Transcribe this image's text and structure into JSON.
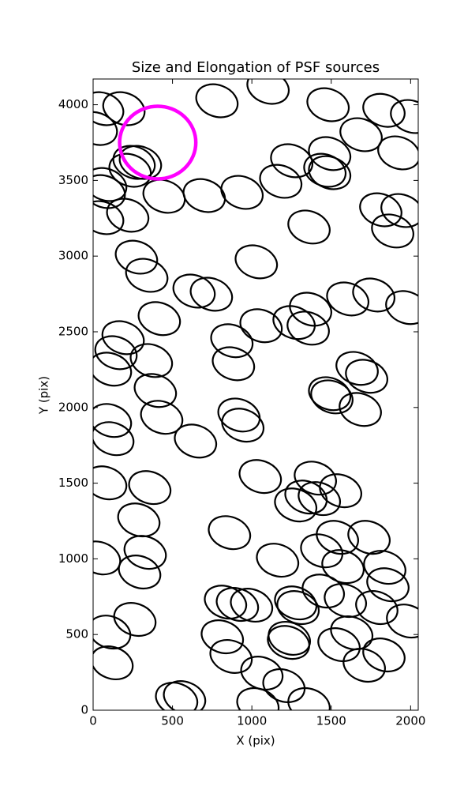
{
  "chart_data": {
    "type": "scatter",
    "title": "Size and Elongation of PSF sources",
    "x_label": "X (pix)",
    "y_label": "Y (pix)",
    "xlim": [
      0,
      2048
    ],
    "ylim": [
      0,
      4170
    ],
    "xticks": [
      0,
      500,
      1000,
      1500,
      2000
    ],
    "yticks": [
      0,
      500,
      1000,
      1500,
      2000,
      2500,
      3000,
      3500,
      4000
    ],
    "color": "#000000",
    "ellipse_axes": [
      134,
      104
    ],
    "ellipse_angle": 20,
    "x": [
      60,
      194,
      780,
      1102,
      1480,
      1832,
      2006,
      20,
      1688,
      258,
      298,
      1251,
      1490,
      1926,
      233,
      1460,
      1490,
      79,
      70,
      447,
      700,
      938,
      1182,
      60,
      218,
      1812,
      1946,
      1887,
      1360,
      273,
      338,
      1028,
      636,
      745,
      1370,
      417,
      189,
      144,
      1058,
      1266,
      1355,
      1604,
      1768,
      1976,
      874,
      367,
      109,
      884,
      392,
      1663,
      1723,
      1490,
      1504,
      1683,
      432,
      919,
      943,
      109,
      124,
      645,
      79,
      357,
      1053,
      1400,
      1559,
      1276,
      1341,
      1425,
      288,
      859,
      328,
      1539,
      1738,
      1440,
      1162,
      293,
      40,
      1837,
      1574,
      1857,
      834,
      909,
      998,
      1276,
      1450,
      1589,
      1291,
      1787,
      1981,
      263,
      104,
      814,
      1236,
      1231,
      1549,
      1629,
      869,
      1832,
      119,
      1708,
      1063,
      1202,
      526,
      576,
      1038,
      1360
    ],
    "y": [
      3974,
      3974,
      4026,
      4115,
      4000,
      3963,
      3922,
      3843,
      3802,
      3619,
      3619,
      3630,
      3677,
      3682,
      3567,
      3567,
      3551,
      3473,
      3426,
      3395,
      3400,
      3421,
      3494,
      3254,
      3270,
      3306,
      3301,
      3166,
      3192,
      2993,
      2873,
      2962,
      2769,
      2748,
      2649,
      2587,
      2461,
      2362,
      2540,
      2561,
      2524,
      2717,
      2743,
      2660,
      2441,
      2310,
      2253,
      2289,
      2112,
      2258,
      2206,
      2091,
      2070,
      1987,
      1935,
      1950,
      1883,
      1914,
      1794,
      1778,
      1502,
      1471,
      1544,
      1533,
      1450,
      1356,
      1408,
      1398,
      1257,
      1173,
      1043,
      1142,
      1142,
      1053,
      991,
      913,
      1006,
      944,
      949,
      829,
      714,
      699,
      694,
      709,
      787,
      725,
      678,
      678,
      589,
      600,
      516,
      485,
      475,
      448,
      433,
      511,
      355,
      365,
      313,
      297,
      245,
      162,
      73,
      83,
      37,
      37
    ],
    "highlight": {
      "x": 407,
      "y": 3750,
      "radius": 240,
      "color": "#ff00ff"
    }
  }
}
